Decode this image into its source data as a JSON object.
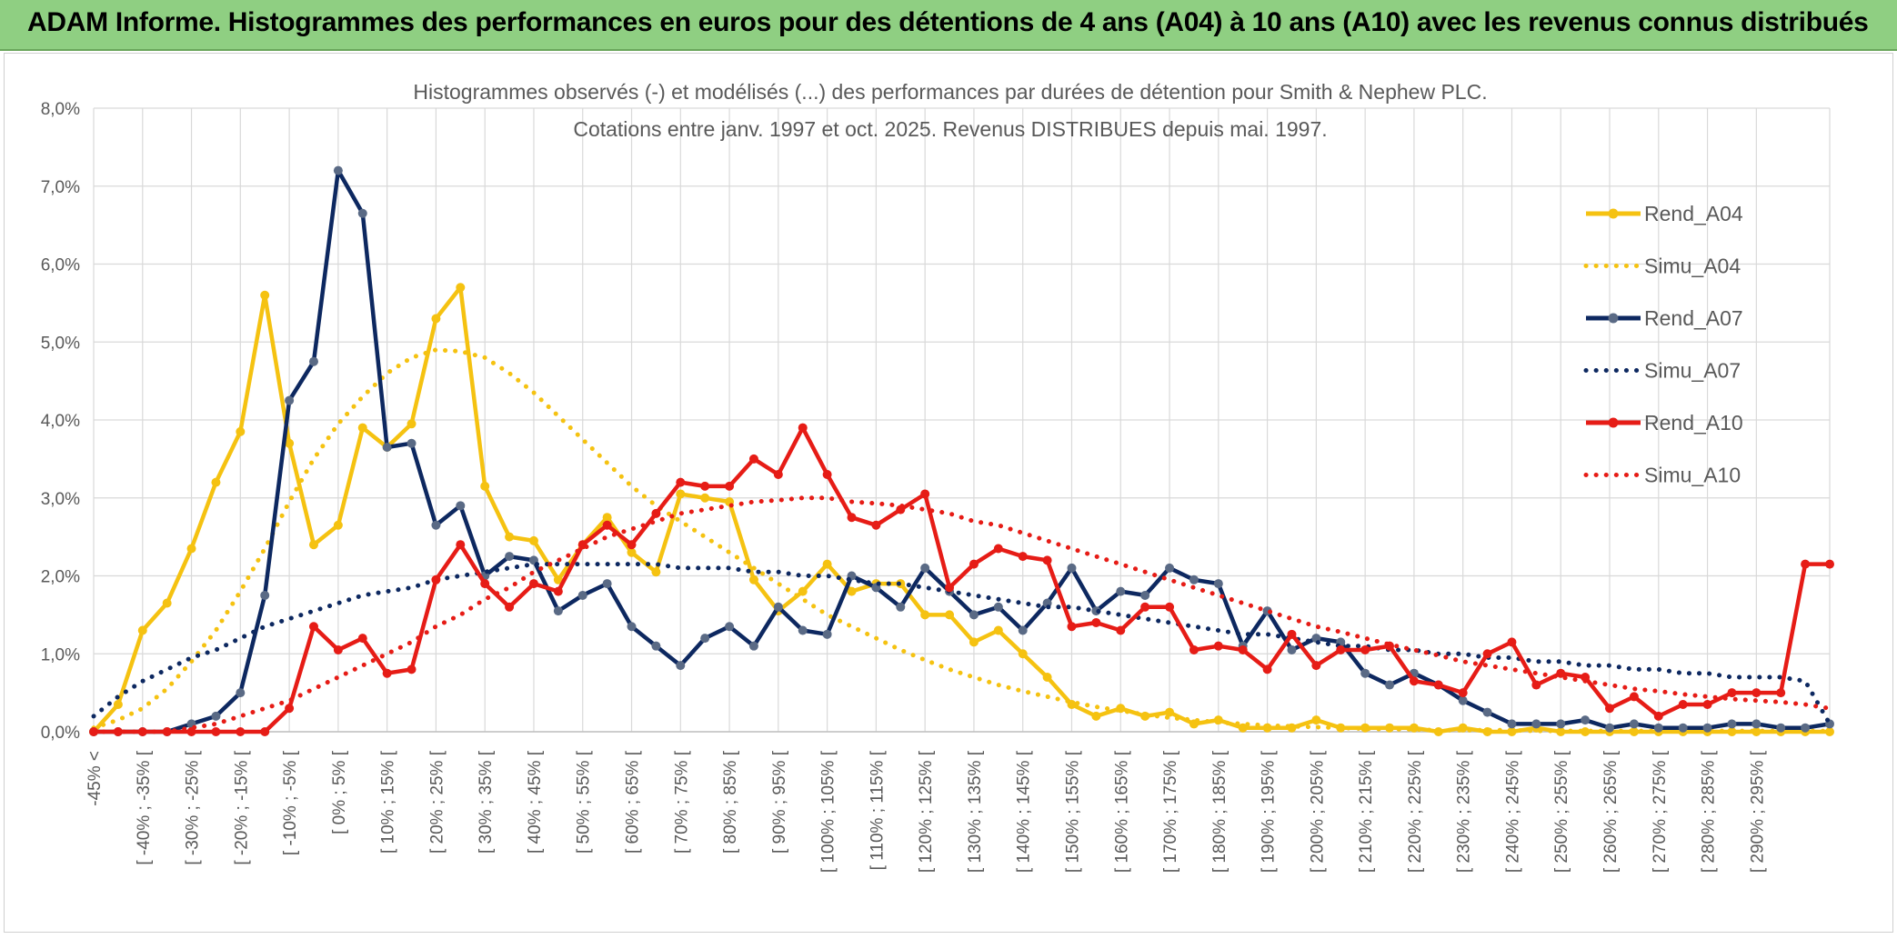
{
  "banner": {
    "title": "ADAM Informe. Histogrammes des performances en euros pour des détentions de 4 ans (A04) à 10 ans (A10) avec les revenus connus distribués",
    "color": "#8fcf82"
  },
  "chart_data": {
    "type": "line",
    "title": "Histogrammes observés (-) et modélisés (...) des performances par durées de détention pour Smith & Nephew PLC.",
    "subtitle": "Cotations entre janv. 1997 et oct. 2025. Revenus DISTRIBUES depuis mai. 1997.",
    "xlabel": "",
    "ylabel": "",
    "ylim": [
      0,
      8
    ],
    "y_ticks": [
      "0,0%",
      "1,0%",
      "2,0%",
      "3,0%",
      "4,0%",
      "5,0%",
      "6,0%",
      "7,0%",
      "8,0%"
    ],
    "grid": true,
    "legend_position": "right",
    "x_labels": [
      "-45% <",
      "[ -40% ; -35% [",
      "[ -30% ; -25% [",
      "[ -20% ; -15% [",
      "[ -10% ; -5% [",
      "[ 0% ; 5% [",
      "[ 10% ; 15% [",
      "[ 20% ; 25% [",
      "[ 30% ; 35% [",
      "[ 40% ; 45% [",
      "[ 50% ; 55% [",
      "[ 60% ; 65% [",
      "[ 70% ; 75% [",
      "[ 80% ; 85% [",
      "[ 90% ; 95% [",
      "[ 100% ; 105% [",
      "[ 110% ; 115% [",
      "[ 120% ; 125% [",
      "[ 130% ; 135% [",
      "[ 140% ; 145% [",
      "[ 150% ; 155% [",
      "[ 160% ; 165% [",
      "[ 170% ; 175% [",
      "[ 180% ; 185% [",
      "[ 190% ; 195% [",
      "[ 200% ; 205% [",
      "[ 210% ; 215% [",
      "[ 220% ; 225% [",
      "[ 230% ; 235% [",
      "[ 240% ; 245% [",
      "[ 250% ; 255% [",
      "[ 260% ; 265% [",
      "[ 270% ; 275% [",
      "[ 280% ; 285% [",
      "[ 290% ; 295% ["
    ],
    "series": [
      {
        "name": "Rend_A04",
        "style": "solid",
        "color": "#f5c211",
        "values": [
          0.0,
          0.35,
          1.3,
          1.65,
          2.35,
          3.2,
          3.85,
          5.6,
          3.7,
          2.4,
          2.65,
          3.9,
          3.65,
          3.95,
          5.3,
          5.7,
          3.15,
          2.5,
          2.45,
          1.95,
          2.4,
          2.75,
          2.3,
          2.05,
          3.05,
          3.0,
          2.95,
          1.95,
          1.55,
          1.8,
          2.15,
          1.8,
          1.9,
          1.9,
          1.5,
          1.5,
          1.15,
          1.3,
          1.0,
          0.7,
          0.35,
          0.2,
          0.3,
          0.2,
          0.25,
          0.1,
          0.15,
          0.05,
          0.05,
          0.05,
          0.15,
          0.05,
          0.05,
          0.05,
          0.05,
          0.0,
          0.05,
          0.0,
          0.0,
          0.05,
          0.0,
          0.0,
          0.0,
          0.0,
          0.0,
          0.0,
          0.0,
          0.0,
          0.0,
          0.0,
          0.0,
          0.0
        ]
      },
      {
        "name": "Simu_A04",
        "style": "dotted",
        "color": "#f5c211",
        "values": [
          0.05,
          0.15,
          0.3,
          0.55,
          0.9,
          1.3,
          1.8,
          2.35,
          2.95,
          3.5,
          3.95,
          4.3,
          4.6,
          4.8,
          4.9,
          4.88,
          4.8,
          4.6,
          4.35,
          4.05,
          3.75,
          3.45,
          3.15,
          2.9,
          2.7,
          2.5,
          2.3,
          2.1,
          1.9,
          1.7,
          1.5,
          1.35,
          1.2,
          1.05,
          0.92,
          0.8,
          0.7,
          0.6,
          0.52,
          0.45,
          0.38,
          0.32,
          0.27,
          0.22,
          0.18,
          0.15,
          0.12,
          0.1,
          0.08,
          0.07,
          0.06,
          0.05,
          0.04,
          0.03,
          0.03,
          0.02,
          0.02,
          0.02,
          0.02,
          0.01,
          0.01,
          0.01,
          0.01,
          0.01,
          0.01,
          0.01,
          0.01,
          0.01,
          0.01,
          0.01,
          0.01,
          0.01
        ]
      },
      {
        "name": "Rend_A07",
        "style": "solid",
        "color": "#0d2860",
        "values": [
          0.0,
          0.0,
          0.0,
          0.0,
          0.1,
          0.2,
          0.5,
          1.75,
          4.25,
          4.75,
          7.2,
          6.65,
          3.65,
          3.7,
          2.65,
          2.9,
          2.0,
          2.25,
          2.2,
          1.55,
          1.75,
          1.9,
          1.35,
          1.1,
          0.85,
          1.2,
          1.35,
          1.1,
          1.6,
          1.3,
          1.25,
          2.0,
          1.85,
          1.6,
          2.1,
          1.8,
          1.5,
          1.6,
          1.3,
          1.65,
          2.1,
          1.55,
          1.8,
          1.75,
          2.1,
          1.95,
          1.9,
          1.1,
          1.55,
          1.05,
          1.2,
          1.15,
          0.75,
          0.6,
          0.75,
          0.6,
          0.4,
          0.25,
          0.1,
          0.1,
          0.1,
          0.15,
          0.05,
          0.1,
          0.05,
          0.05,
          0.05,
          0.1,
          0.1,
          0.05,
          0.05,
          0.1
        ]
      },
      {
        "name": "Simu_A07",
        "style": "dotted",
        "color": "#0d2860",
        "values": [
          0.2,
          0.45,
          0.65,
          0.8,
          0.95,
          1.05,
          1.2,
          1.35,
          1.45,
          1.55,
          1.65,
          1.75,
          1.8,
          1.85,
          1.95,
          2.0,
          2.05,
          2.1,
          2.15,
          2.15,
          2.15,
          2.15,
          2.15,
          2.15,
          2.1,
          2.1,
          2.1,
          2.05,
          2.05,
          2.0,
          2.0,
          1.95,
          1.9,
          1.9,
          1.85,
          1.8,
          1.75,
          1.7,
          1.65,
          1.6,
          1.6,
          1.55,
          1.5,
          1.45,
          1.4,
          1.35,
          1.3,
          1.25,
          1.25,
          1.2,
          1.15,
          1.1,
          1.1,
          1.05,
          1.05,
          1.0,
          1.0,
          0.95,
          0.95,
          0.9,
          0.9,
          0.85,
          0.85,
          0.8,
          0.8,
          0.75,
          0.75,
          0.7,
          0.7,
          0.7,
          0.65,
          0.1
        ]
      },
      {
        "name": "Rend_A10",
        "style": "solid",
        "color": "#e61c16",
        "values": [
          0.0,
          0.0,
          0.0,
          0.0,
          0.0,
          0.0,
          0.0,
          0.0,
          0.3,
          1.35,
          1.05,
          1.2,
          0.75,
          0.8,
          1.95,
          2.4,
          1.9,
          1.6,
          1.9,
          1.8,
          2.4,
          2.65,
          2.4,
          2.8,
          3.2,
          3.15,
          3.15,
          3.5,
          3.3,
          3.9,
          3.3,
          2.75,
          2.65,
          2.85,
          3.05,
          1.85,
          2.15,
          2.35,
          2.25,
          2.2,
          1.35,
          1.4,
          1.3,
          1.6,
          1.6,
          1.05,
          1.1,
          1.05,
          0.8,
          1.25,
          0.85,
          1.05,
          1.05,
          1.1,
          0.65,
          0.6,
          0.5,
          1.0,
          1.15,
          0.6,
          0.75,
          0.7,
          0.3,
          0.45,
          0.2,
          0.35,
          0.35,
          0.5,
          0.5,
          0.5,
          2.15,
          2.15
        ]
      },
      {
        "name": "Simu_A10",
        "style": "dotted",
        "color": "#e61c16",
        "values": [
          0.0,
          0.0,
          0.0,
          0.0,
          0.05,
          0.1,
          0.2,
          0.3,
          0.4,
          0.55,
          0.7,
          0.85,
          1.0,
          1.15,
          1.35,
          1.5,
          1.7,
          1.85,
          2.05,
          2.2,
          2.35,
          2.5,
          2.6,
          2.7,
          2.8,
          2.85,
          2.9,
          2.95,
          2.97,
          3.0,
          3.0,
          2.95,
          2.93,
          2.9,
          2.85,
          2.8,
          2.7,
          2.65,
          2.55,
          2.45,
          2.35,
          2.25,
          2.15,
          2.05,
          1.95,
          1.85,
          1.75,
          1.65,
          1.55,
          1.45,
          1.35,
          1.28,
          1.2,
          1.12,
          1.05,
          0.98,
          0.9,
          0.85,
          0.8,
          0.75,
          0.7,
          0.65,
          0.6,
          0.55,
          0.52,
          0.48,
          0.45,
          0.42,
          0.4,
          0.38,
          0.35,
          0.3
        ]
      }
    ]
  }
}
